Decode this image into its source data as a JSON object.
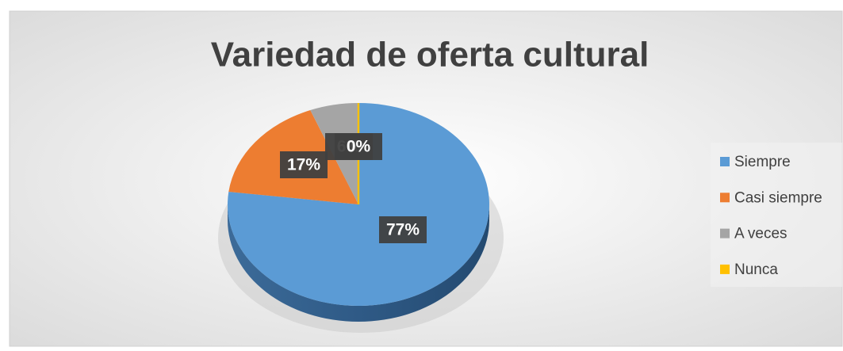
{
  "chart_data": {
    "type": "pie",
    "title": "Variedad de oferta cultural",
    "categories": [
      "Siempre",
      "Casi siempre",
      "A veces",
      "Nunca"
    ],
    "values": [
      77,
      17,
      6,
      0
    ],
    "value_labels": [
      "77%",
      "17%",
      "6%",
      "0%"
    ],
    "colors": [
      "#5b9bd5",
      "#ed7d31",
      "#a5a5a5",
      "#ffc000"
    ],
    "legend": "right"
  }
}
